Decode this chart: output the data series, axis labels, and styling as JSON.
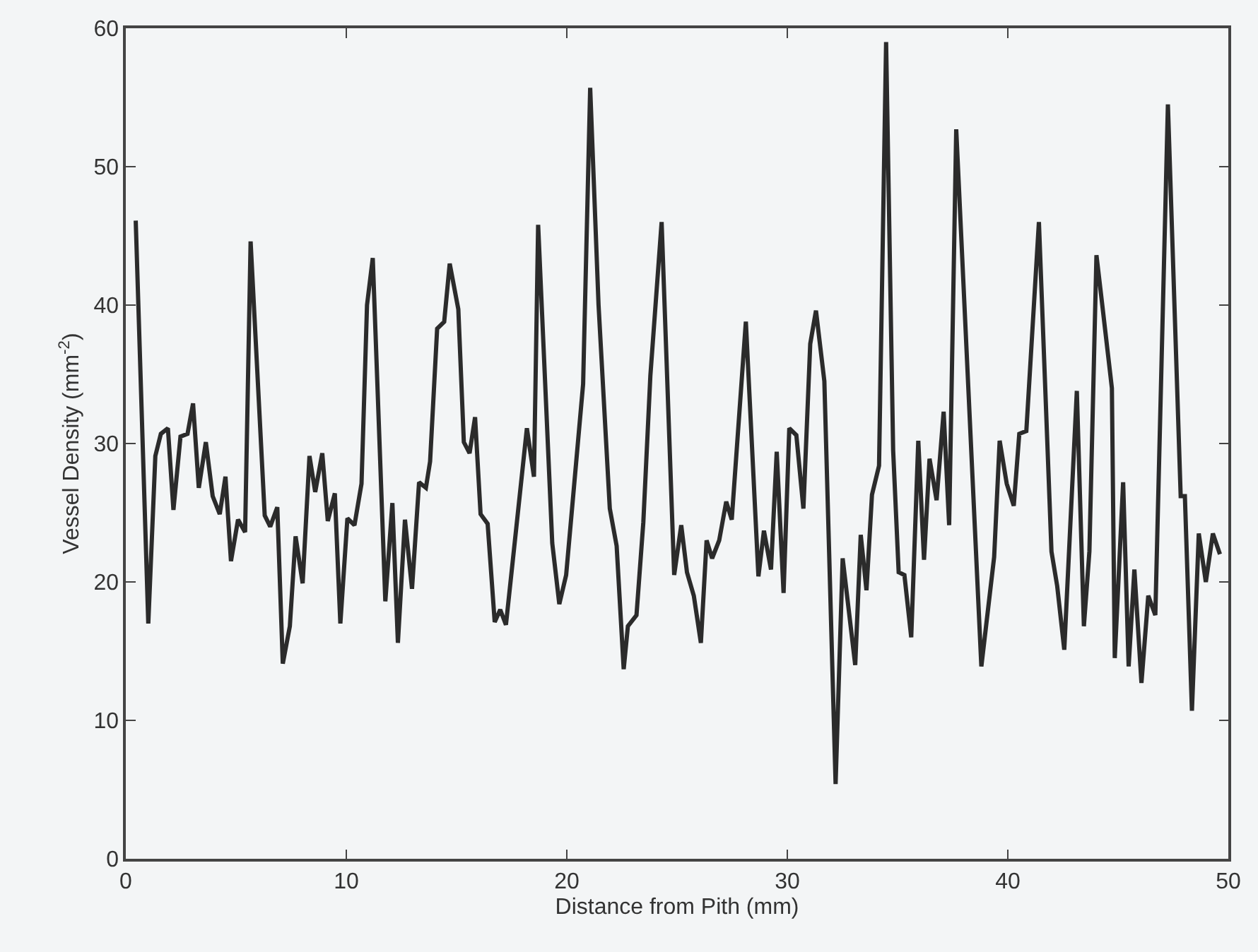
{
  "chart_data": {
    "type": "line",
    "xlabel": "Distance from Pith (mm)",
    "ylabel": "Vessel Density (mm$^{-2}$)",
    "xlim": [
      0,
      50
    ],
    "xticks": [
      0,
      10,
      20,
      30,
      40,
      50
    ],
    "ylim": [
      0,
      60
    ],
    "yticks": [
      0,
      10,
      20,
      30,
      40,
      50,
      60
    ],
    "line_style": "solid",
    "series": [
      {
        "color": "#2b2b2b",
        "x": [
          0.45,
          1.02,
          1.34,
          1.59,
          1.91,
          2.16,
          2.48,
          2.8,
          3.05,
          3.31,
          3.63,
          3.94,
          4.26,
          4.52,
          4.77,
          5.09,
          5.41,
          5.66,
          6.3,
          6.55,
          6.87,
          7.12,
          7.44,
          7.7,
          8.02,
          8.33,
          8.59,
          8.91,
          9.16,
          9.48,
          9.73,
          10.05,
          10.37,
          10.69,
          10.94,
          11.2,
          11.77,
          12.09,
          12.34,
          12.66,
          12.98,
          13.3,
          13.61,
          13.8,
          14.12,
          14.44,
          14.69,
          15.08,
          15.33,
          15.59,
          15.84,
          16.09,
          16.41,
          16.73,
          16.98,
          17.24,
          18.19,
          18.51,
          18.7,
          19.34,
          19.66,
          19.97,
          20.74,
          21.06,
          21.44,
          21.95,
          22.26,
          22.58,
          22.77,
          23.16,
          23.47,
          23.79,
          24.3,
          24.87,
          25.19,
          25.45,
          25.76,
          26.08,
          26.34,
          26.59,
          26.91,
          27.23,
          27.48,
          28.12,
          28.69,
          28.94,
          29.26,
          29.52,
          29.83,
          30.09,
          30.41,
          30.73,
          31.04,
          31.3,
          31.68,
          32.19,
          32.51,
          33.08,
          33.33,
          33.59,
          33.84,
          34.16,
          34.48,
          34.8,
          35.05,
          35.31,
          35.62,
          35.94,
          36.2,
          36.45,
          36.77,
          37.09,
          37.34,
          37.66,
          38.8,
          39.38,
          39.63,
          39.95,
          40.27,
          40.52,
          40.84,
          41.41,
          41.98,
          42.24,
          42.56,
          43.13,
          43.45,
          43.7,
          44.02,
          44.27,
          44.72,
          44.85,
          45.23,
          45.48,
          45.74,
          46.06,
          46.37,
          46.69,
          47.26,
          47.84,
          48.03,
          48.35,
          48.66,
          48.98,
          49.3,
          49.62
        ],
        "values": [
          46.1,
          17,
          29.1,
          30.7,
          31.1,
          25.2,
          30.5,
          30.7,
          32.9,
          26.8,
          30.1,
          26.2,
          24.9,
          27.6,
          21.5,
          24.5,
          23.6,
          44.6,
          24.8,
          24,
          25.4,
          14.1,
          16.8,
          23.3,
          19.9,
          29.1,
          26.5,
          29.3,
          24.4,
          26.4,
          17,
          24.6,
          24.1,
          27.1,
          40,
          43.4,
          18.6,
          25.7,
          15.6,
          24.5,
          19.5,
          27.2,
          26.8,
          28.7,
          38.3,
          38.8,
          43,
          39.7,
          30.1,
          29.3,
          31.9,
          24.9,
          24.2,
          17.1,
          18,
          16.9,
          31.1,
          27.6,
          45.8,
          22.8,
          18.4,
          20.5,
          34.3,
          55.7,
          40,
          25.3,
          22.6,
          13.7,
          16.8,
          17.6,
          24.3,
          34.9,
          46,
          20.5,
          24.1,
          20.7,
          19,
          15.6,
          23,
          21.7,
          23,
          25.8,
          24.5,
          38.8,
          20.4,
          23.7,
          20.9,
          29.4,
          19.2,
          31.1,
          30.6,
          25.3,
          37.2,
          39.6,
          34.5,
          5.4,
          21.7,
          14,
          23.4,
          19.4,
          26.3,
          28.4,
          59,
          29.5,
          20.7,
          20.5,
          16,
          30.2,
          21.6,
          28.9,
          25.9,
          32.3,
          24.1,
          52.7,
          13.9,
          21.8,
          30.2,
          27.1,
          25.5,
          30.7,
          30.9,
          46,
          22.2,
          19.7,
          15.1,
          33.8,
          16.8,
          22.2,
          43.6,
          40.2,
          34,
          14.5,
          27.2,
          13.9,
          20.9,
          12.7,
          19,
          17.6,
          54.5,
          26.2,
          26.2,
          10.7,
          23.5,
          20,
          23.5,
          22
        ]
      }
    ]
  }
}
